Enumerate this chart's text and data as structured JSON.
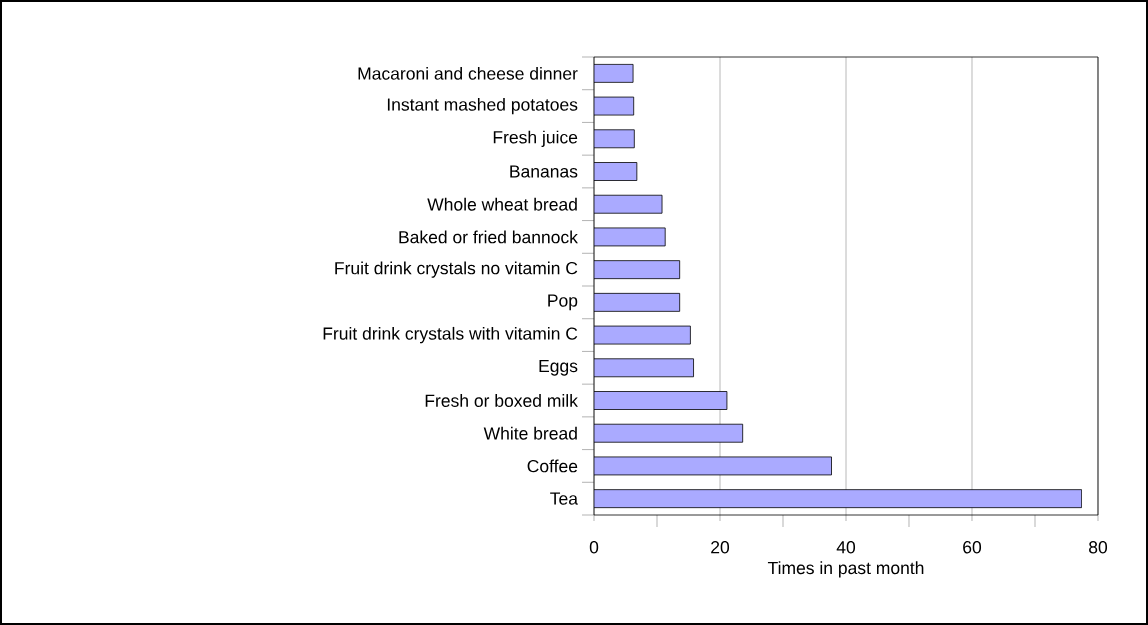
{
  "chart_data": {
    "type": "bar",
    "orientation": "horizontal",
    "xlabel": "Times in past month",
    "categories": [
      "Macaroni and cheese dinner",
      "Instant mashed potatoes",
      "Fresh juice",
      "Bananas",
      "Whole wheat bread",
      "Baked or fried bannock",
      "Fruit drink crystals no vitamin C",
      "Pop",
      "Fruit drink crystals with vitamin C",
      "Eggs",
      "Fresh or boxed milk",
      "White bread",
      "Coffee",
      "Tea"
    ],
    "values": [
      6.2,
      6.3,
      6.4,
      6.8,
      10.8,
      11.3,
      13.6,
      13.6,
      15.3,
      15.8,
      21.1,
      23.6,
      37.7,
      77.4
    ],
    "color": "#aaaaff",
    "xlim": [
      0,
      80
    ],
    "xticks": [
      0,
      20,
      40,
      60,
      80
    ],
    "grid": "x"
  }
}
